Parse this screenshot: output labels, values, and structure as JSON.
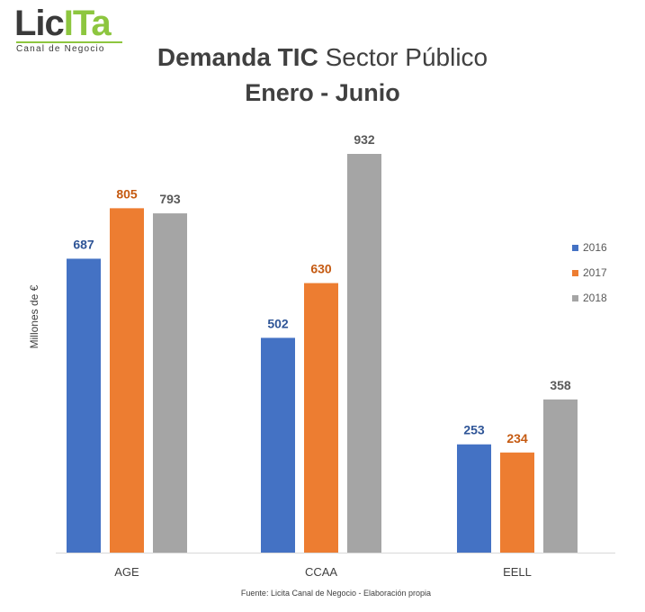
{
  "logo": {
    "part1": "Lic",
    "part2": "ITa",
    "tagline": "Canal de Negocio"
  },
  "header": {
    "title_bold": "Demanda TIC",
    "title_regular": "Sector Público",
    "subtitle": "Enero - Junio"
  },
  "source": "Fuente: Licita Canal de Negocio - Elaboración propia",
  "colors": {
    "2016": "#4472c4",
    "2017": "#ed7d31",
    "2018": "#a5a5a5",
    "label_2016": "#2f5597",
    "label_2017": "#c55a11",
    "label_2018": "#595959"
  },
  "chart_data": {
    "type": "bar",
    "title": "Demanda TIC Sector Público",
    "subtitle": "Enero - Junio",
    "xlabel": "",
    "ylabel": "Millones de €",
    "categories": [
      "AGE",
      "CCAA",
      "EELL"
    ],
    "series": [
      {
        "name": "2016",
        "values": [
          687,
          502,
          253
        ]
      },
      {
        "name": "2017",
        "values": [
          805,
          630,
          234
        ]
      },
      {
        "name": "2018",
        "values": [
          793,
          932,
          358
        ]
      }
    ],
    "ylim": [
      0,
      932
    ],
    "grid": false,
    "legend": "right",
    "data_labels": true
  }
}
